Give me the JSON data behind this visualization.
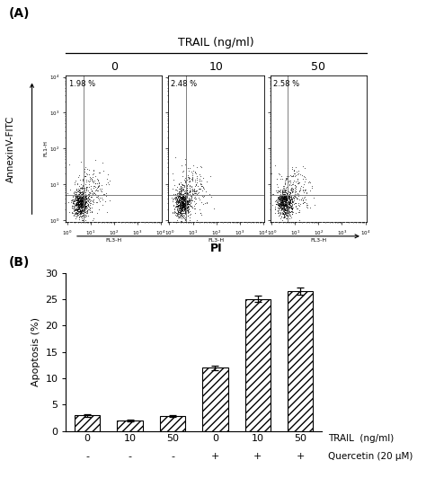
{
  "panel_A": {
    "title": "TRAIL (ng/ml)",
    "ylabel": "AnnexinV-FITC",
    "xlabel": "PI",
    "subpanels": [
      "0",
      "10",
      "50"
    ],
    "percentages": [
      "1.98 %",
      "2.48 %",
      "2.58 %"
    ]
  },
  "panel_B": {
    "ylabel": "Apoptosis (%)",
    "ylim": [
      0,
      30
    ],
    "yticks": [
      0,
      5,
      10,
      15,
      20,
      25,
      30
    ],
    "bar_values": [
      3.0,
      2.0,
      2.8,
      12.0,
      25.0,
      26.5
    ],
    "bar_errors": [
      0.25,
      0.15,
      0.2,
      0.4,
      0.6,
      0.7
    ],
    "trail_labels": [
      "0",
      "10",
      "50",
      "0",
      "10",
      "50"
    ],
    "quercetin_labels": [
      "-",
      "-",
      "-",
      "+",
      "+",
      "+"
    ],
    "trail_xlabel": "TRAIL  (ng/ml)",
    "quercetin_xlabel": "Quercetin (20 μM)",
    "hatch_pattern": "////",
    "bar_color": "white",
    "bar_edgecolor": "black"
  },
  "label_A": "(A)",
  "label_B": "(B)",
  "bg_color": "white",
  "text_color": "black"
}
